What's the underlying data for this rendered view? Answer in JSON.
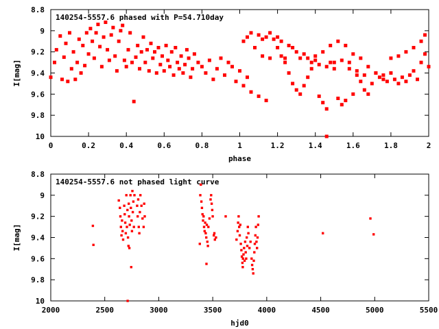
{
  "chart_data": [
    {
      "type": "scatter",
      "title": "140254-5557.6 phased with P=54.710day",
      "xlabel": "phase",
      "ylabel": "I[mag]",
      "xlim": [
        0,
        2
      ],
      "ylim": [
        10,
        8.8
      ],
      "y_inverted": true,
      "xticks": [
        0,
        0.2,
        0.4,
        0.6,
        0.8,
        1,
        1.2,
        1.4,
        1.6,
        1.8,
        2
      ],
      "xtick_labels": [
        "0",
        "0.2",
        "0.4",
        "0.6",
        "0.8",
        "1",
        "1.2",
        "1.4",
        "1.6",
        "1.8",
        "2"
      ],
      "yticks": [
        8.8,
        9,
        9.2,
        9.4,
        9.6,
        9.8,
        10
      ],
      "ytick_labels": [
        "8.8",
        "9",
        "9.2",
        "9.4",
        "9.6",
        "9.8",
        "10"
      ],
      "marker_color": "#ff0000",
      "points": [
        [
          0.0,
          9.44
        ],
        [
          0.02,
          9.3
        ],
        [
          0.03,
          9.18
        ],
        [
          0.05,
          9.05
        ],
        [
          0.06,
          9.46
        ],
        [
          0.07,
          9.25
        ],
        [
          0.08,
          9.12
        ],
        [
          0.09,
          9.48
        ],
        [
          0.1,
          9.02
        ],
        [
          0.11,
          9.36
        ],
        [
          0.12,
          9.2
        ],
        [
          0.13,
          9.46
        ],
        [
          0.14,
          9.3
        ],
        [
          0.15,
          9.08
        ],
        [
          0.16,
          9.4
        ],
        [
          0.17,
          9.14
        ],
        [
          0.18,
          9.33
        ],
        [
          0.19,
          9.02
        ],
        [
          0.2,
          9.22
        ],
        [
          0.21,
          8.98
        ],
        [
          0.22,
          9.1
        ],
        [
          0.23,
          9.26
        ],
        [
          0.24,
          9.02
        ],
        [
          0.25,
          8.94
        ],
        [
          0.26,
          9.15
        ],
        [
          0.27,
          9.34
        ],
        [
          0.28,
          9.06
        ],
        [
          0.29,
          8.92
        ],
        [
          0.3,
          9.18
        ],
        [
          0.31,
          9.28
        ],
        [
          0.32,
          9.04
        ],
        [
          0.33,
          8.97
        ],
        [
          0.34,
          9.24
        ],
        [
          0.35,
          9.38
        ],
        [
          0.36,
          9.1
        ],
        [
          0.37,
          9.0
        ],
        [
          0.38,
          8.95
        ],
        [
          0.39,
          9.28
        ],
        [
          0.4,
          9.34
        ],
        [
          0.41,
          9.18
        ],
        [
          0.42,
          9.02
        ],
        [
          0.43,
          9.3
        ],
        [
          0.44,
          9.67
        ],
        [
          0.45,
          9.25
        ],
        [
          0.46,
          9.14
        ],
        [
          0.47,
          9.36
        ],
        [
          0.48,
          9.2
        ],
        [
          0.49,
          9.06
        ],
        [
          0.5,
          9.3
        ],
        [
          0.51,
          9.18
        ],
        [
          0.52,
          9.38
        ],
        [
          0.53,
          9.12
        ],
        [
          0.54,
          9.26
        ],
        [
          0.55,
          9.2
        ],
        [
          0.56,
          9.4
        ],
        [
          0.57,
          9.16
        ],
        [
          0.58,
          9.32
        ],
        [
          0.59,
          9.24
        ],
        [
          0.6,
          9.38
        ],
        [
          0.61,
          9.14
        ],
        [
          0.62,
          9.28
        ],
        [
          0.63,
          9.34
        ],
        [
          0.64,
          9.2
        ],
        [
          0.65,
          9.42
        ],
        [
          0.66,
          9.16
        ],
        [
          0.67,
          9.3
        ],
        [
          0.68,
          9.36
        ],
        [
          0.69,
          9.24
        ],
        [
          0.7,
          9.4
        ],
        [
          0.71,
          9.32
        ],
        [
          0.72,
          9.18
        ],
        [
          0.73,
          9.26
        ],
        [
          0.74,
          9.44
        ],
        [
          0.75,
          9.36
        ],
        [
          0.76,
          9.22
        ],
        [
          0.78,
          9.3
        ],
        [
          0.8,
          9.34
        ],
        [
          0.82,
          9.4
        ],
        [
          0.84,
          9.28
        ],
        [
          0.86,
          9.46
        ],
        [
          0.88,
          9.36
        ],
        [
          0.9,
          9.26
        ],
        [
          0.92,
          9.42
        ],
        [
          0.94,
          9.3
        ],
        [
          0.96,
          9.34
        ],
        [
          0.98,
          9.48
        ],
        [
          1.0,
          9.38
        ],
        [
          1.02,
          9.52
        ],
        [
          1.04,
          9.44
        ],
        [
          1.06,
          9.58
        ],
        [
          1.08,
          9.16
        ],
        [
          1.1,
          9.62
        ],
        [
          1.12,
          9.08
        ],
        [
          1.14,
          9.66
        ],
        [
          1.16,
          9.02
        ],
        [
          1.18,
          9.08
        ],
        [
          1.2,
          9.16
        ],
        [
          1.22,
          9.24
        ],
        [
          1.24,
          9.3
        ],
        [
          1.26,
          9.4
        ],
        [
          1.28,
          9.5
        ],
        [
          1.3,
          9.56
        ],
        [
          1.32,
          9.6
        ],
        [
          1.34,
          9.52
        ],
        [
          1.36,
          9.44
        ],
        [
          1.38,
          9.36
        ],
        [
          1.4,
          9.28
        ],
        [
          1.42,
          9.62
        ],
        [
          1.44,
          9.68
        ],
        [
          1.46,
          9.74
        ],
        [
          1.46,
          10.0
        ],
        [
          1.48,
          9.3
        ],
        [
          1.5,
          9.36
        ],
        [
          1.52,
          9.64
        ],
        [
          1.54,
          9.7
        ],
        [
          1.56,
          9.66
        ],
        [
          1.58,
          9.36
        ],
        [
          1.6,
          9.6
        ],
        [
          1.62,
          9.42
        ],
        [
          1.64,
          9.48
        ],
        [
          1.66,
          9.56
        ],
        [
          1.68,
          9.6
        ],
        [
          1.7,
          9.5
        ],
        [
          1.72,
          9.4
        ],
        [
          1.74,
          9.44
        ],
        [
          1.76,
          9.46
        ],
        [
          1.78,
          9.48
        ],
        [
          1.8,
          9.4
        ],
        [
          1.82,
          9.46
        ],
        [
          1.84,
          9.5
        ],
        [
          1.86,
          9.44
        ],
        [
          1.88,
          9.48
        ],
        [
          1.9,
          9.42
        ],
        [
          1.92,
          9.38
        ],
        [
          1.94,
          9.46
        ],
        [
          1.96,
          9.3
        ],
        [
          1.98,
          9.22
        ],
        [
          2.0,
          9.34
        ],
        [
          1.02,
          9.1
        ],
        [
          1.04,
          9.06
        ],
        [
          1.06,
          9.02
        ],
        [
          1.1,
          9.04
        ],
        [
          1.14,
          9.06
        ],
        [
          1.2,
          9.06
        ],
        [
          1.22,
          9.1
        ],
        [
          1.26,
          9.14
        ],
        [
          1.28,
          9.16
        ],
        [
          1.3,
          9.2
        ],
        [
          1.34,
          9.22
        ],
        [
          1.36,
          9.26
        ],
        [
          1.4,
          9.24
        ],
        [
          1.44,
          9.2
        ],
        [
          1.48,
          9.14
        ],
        [
          1.52,
          9.1
        ],
        [
          1.56,
          9.14
        ],
        [
          1.6,
          9.22
        ],
        [
          1.64,
          9.26
        ],
        [
          1.68,
          9.34
        ],
        [
          1.72,
          9.4
        ],
        [
          1.76,
          9.42
        ],
        [
          1.8,
          9.26
        ],
        [
          1.84,
          9.24
        ],
        [
          1.88,
          9.2
        ],
        [
          1.92,
          9.16
        ],
        [
          1.96,
          9.1
        ],
        [
          1.98,
          9.04
        ],
        [
          1.12,
          9.24
        ],
        [
          1.16,
          9.26
        ],
        [
          1.24,
          9.26
        ],
        [
          1.32,
          9.26
        ],
        [
          1.38,
          9.3
        ],
        [
          1.42,
          9.32
        ],
        [
          1.46,
          9.34
        ],
        [
          1.5,
          9.3
        ],
        [
          1.54,
          9.28
        ],
        [
          1.58,
          9.3
        ],
        [
          1.62,
          9.38
        ],
        [
          1.66,
          9.42
        ]
      ]
    },
    {
      "type": "scatter",
      "title": "140254-5557.6 not phased light curve",
      "xlabel": "hjd0",
      "ylabel": "I[mag]",
      "xlim": [
        2000,
        5500
      ],
      "ylim": [
        10,
        8.8
      ],
      "y_inverted": true,
      "xticks": [
        2000,
        2500,
        3000,
        3500,
        4000,
        4500,
        5000,
        5500
      ],
      "xtick_labels": [
        "2000",
        "2500",
        "3000",
        "3500",
        "4000",
        "4500",
        "5000",
        "5500"
      ],
      "yticks": [
        8.8,
        9,
        9.2,
        9.4,
        9.6,
        9.8,
        10
      ],
      "ytick_labels": [
        "8.8",
        "9",
        "9.2",
        "9.4",
        "9.6",
        "9.8",
        "10"
      ],
      "marker_color": "#ff0000",
      "points": [
        [
          2390,
          9.29
        ],
        [
          2395,
          9.47
        ],
        [
          2630,
          9.05
        ],
        [
          2640,
          9.12
        ],
        [
          2645,
          9.2
        ],
        [
          2650,
          9.3
        ],
        [
          2655,
          9.38
        ],
        [
          2660,
          9.24
        ],
        [
          2665,
          9.34
        ],
        [
          2670,
          9.42
        ],
        [
          2680,
          9.1
        ],
        [
          2685,
          9.18
        ],
        [
          2690,
          9.26
        ],
        [
          2695,
          9.36
        ],
        [
          2700,
          9.0
        ],
        [
          2705,
          9.3
        ],
        [
          2710,
          9.14
        ],
        [
          2712,
          10.0
        ],
        [
          2715,
          9.4
        ],
        [
          2720,
          9.48
        ],
        [
          2722,
          9.08
        ],
        [
          2725,
          9.2
        ],
        [
          2728,
          9.5
        ],
        [
          2732,
          9.28
        ],
        [
          2738,
          9.0
        ],
        [
          2742,
          9.12
        ],
        [
          2745,
          9.68
        ],
        [
          2748,
          9.24
        ],
        [
          2752,
          9.34
        ],
        [
          2756,
          8.96
        ],
        [
          2760,
          9.16
        ],
        [
          2765,
          9.06
        ],
        [
          2770,
          9.3
        ],
        [
          2775,
          9.0
        ],
        [
          2800,
          9.1
        ],
        [
          2805,
          9.2
        ],
        [
          2810,
          9.04
        ],
        [
          2815,
          9.3
        ],
        [
          2820,
          9.36
        ],
        [
          2825,
          9.16
        ],
        [
          2830,
          9.0
        ],
        [
          2840,
          9.1
        ],
        [
          2850,
          9.22
        ],
        [
          2860,
          9.3
        ],
        [
          2865,
          9.08
        ],
        [
          2870,
          9.2
        ],
        [
          3380,
          9.46
        ],
        [
          3385,
          9.0
        ],
        [
          3390,
          8.9
        ],
        [
          3395,
          9.06
        ],
        [
          3400,
          9.12
        ],
        [
          3405,
          9.18
        ],
        [
          3410,
          9.24
        ],
        [
          3415,
          9.2
        ],
        [
          3420,
          9.3
        ],
        [
          3425,
          9.34
        ],
        [
          3430,
          9.26
        ],
        [
          3435,
          9.36
        ],
        [
          3440,
          9.4
        ],
        [
          3442,
          9.65
        ],
        [
          3445,
          9.28
        ],
        [
          3450,
          9.44
        ],
        [
          3455,
          9.48
        ],
        [
          3460,
          9.3
        ],
        [
          3470,
          9.22
        ],
        [
          3480,
          9.04
        ],
        [
          3485,
          9.0
        ],
        [
          3490,
          9.08
        ],
        [
          3495,
          9.14
        ],
        [
          3500,
          9.2
        ],
        [
          3510,
          9.38
        ],
        [
          3515,
          9.36
        ],
        [
          3520,
          9.42
        ],
        [
          3530,
          9.4
        ],
        [
          3620,
          9.2
        ],
        [
          3720,
          9.42
        ],
        [
          3730,
          9.34
        ],
        [
          3735,
          9.26
        ],
        [
          3740,
          9.2
        ],
        [
          3745,
          9.3
        ],
        [
          3750,
          9.38
        ],
        [
          3755,
          9.28
        ],
        [
          3760,
          9.46
        ],
        [
          3765,
          9.52
        ],
        [
          3770,
          9.58
        ],
        [
          3775,
          9.64
        ],
        [
          3778,
          9.68
        ],
        [
          3780,
          9.6
        ],
        [
          3785,
          9.56
        ],
        [
          3790,
          9.5
        ],
        [
          3795,
          9.62
        ],
        [
          3800,
          9.44
        ],
        [
          3805,
          9.54
        ],
        [
          3810,
          9.6
        ],
        [
          3815,
          9.4
        ],
        [
          3820,
          9.48
        ],
        [
          3825,
          9.3
        ],
        [
          3830,
          9.36
        ],
        [
          3840,
          9.5
        ],
        [
          3850,
          9.44
        ],
        [
          3860,
          9.6
        ],
        [
          3865,
          9.66
        ],
        [
          3870,
          9.7
        ],
        [
          3875,
          9.74
        ],
        [
          3880,
          9.62
        ],
        [
          3885,
          9.54
        ],
        [
          3890,
          9.46
        ],
        [
          3895,
          9.38
        ],
        [
          3900,
          9.3
        ],
        [
          3905,
          9.44
        ],
        [
          3910,
          9.5
        ],
        [
          3915,
          9.4
        ],
        [
          3920,
          9.28
        ],
        [
          3925,
          9.2
        ],
        [
          4520,
          9.36
        ],
        [
          4960,
          9.22
        ],
        [
          4990,
          9.37
        ]
      ]
    }
  ]
}
